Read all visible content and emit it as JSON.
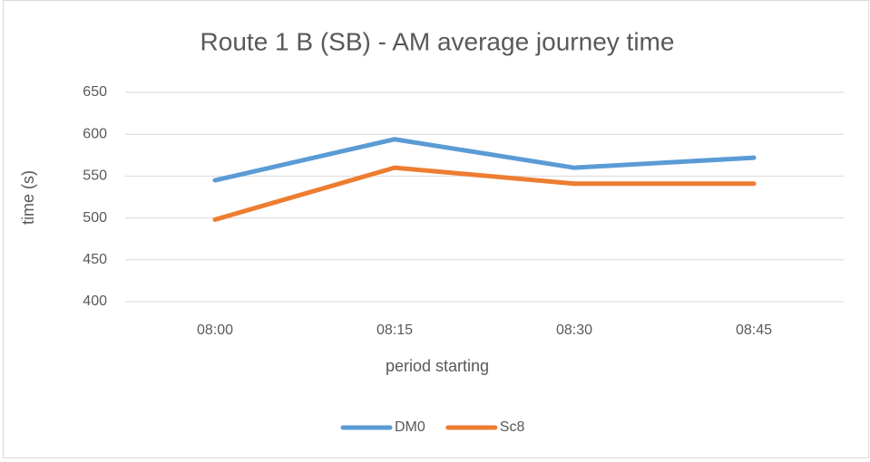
{
  "chart_data": {
    "type": "line",
    "title": "Route 1 B (SB) - AM average journey time",
    "x_label": "period starting",
    "y_label": "time (s)",
    "categories": [
      "08:00",
      "08:15",
      "08:30",
      "08:45"
    ],
    "series": [
      {
        "name": "DM0",
        "color": "#5b9bd5",
        "values": [
          545,
          594,
          560,
          572
        ]
      },
      {
        "name": "Sc8",
        "color": "#ed7d31",
        "values": [
          498,
          560,
          541,
          541
        ]
      }
    ],
    "ylim": [
      400,
      650
    ],
    "yticks": [
      400,
      450,
      500,
      550,
      600,
      650
    ],
    "grid": true,
    "legend": "bottom"
  }
}
